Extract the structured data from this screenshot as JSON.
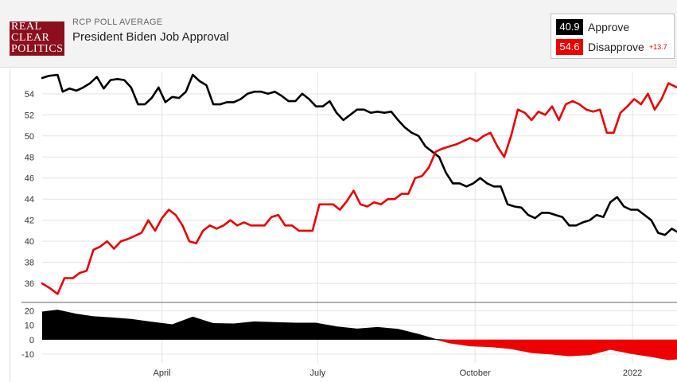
{
  "header": {
    "logo_lines": [
      "REAL",
      "CLEAR",
      "POLITICS"
    ],
    "subtitle": "RCP POLL AVERAGE",
    "title": "President Biden Job Approval"
  },
  "legend": {
    "approve_value": "40.9",
    "approve_label": "Approve",
    "disapprove_value": "54.6",
    "disapprove_label": "Disapprove",
    "spread": "+13.7"
  },
  "colors": {
    "approve": "#000000",
    "disapprove": "#ee0000",
    "grid": "#e3e3e3"
  },
  "chart_data": [
    {
      "type": "line",
      "title": "President Biden Job Approval",
      "x_axis": "date",
      "x_range": [
        "2021-01-21",
        "2022-01-27"
      ],
      "xticks": [
        {
          "date": "2021-04-01",
          "label": "April"
        },
        {
          "date": "2021-07-01",
          "label": "July"
        },
        {
          "date": "2021-10-01",
          "label": "October"
        },
        {
          "date": "2022-01-01",
          "label": "2022"
        }
      ],
      "ylim": [
        34.5,
        55.8
      ],
      "yticks": [
        36,
        38,
        40,
        42,
        44,
        46,
        48,
        50,
        52,
        54
      ],
      "grid": true,
      "series": [
        {
          "name": "Approve",
          "color": "#000000",
          "points": [
            [
              "2021-01-21",
              55.5
            ],
            [
              "2021-01-25",
              55.7
            ],
            [
              "2021-01-30",
              55.8
            ],
            [
              "2021-02-02",
              54.2
            ],
            [
              "2021-02-06",
              54.5
            ],
            [
              "2021-02-10",
              54.3
            ],
            [
              "2021-02-14",
              54.6
            ],
            [
              "2021-02-18",
              55.0
            ],
            [
              "2021-02-22",
              55.6
            ],
            [
              "2021-02-26",
              54.5
            ],
            [
              "2021-03-02",
              55.3
            ],
            [
              "2021-03-06",
              55.4
            ],
            [
              "2021-03-10",
              55.3
            ],
            [
              "2021-03-14",
              54.6
            ],
            [
              "2021-03-18",
              53.0
            ],
            [
              "2021-03-22",
              53.0
            ],
            [
              "2021-03-26",
              53.6
            ],
            [
              "2021-03-30",
              54.6
            ],
            [
              "2021-04-03",
              53.2
            ],
            [
              "2021-04-07",
              53.7
            ],
            [
              "2021-04-11",
              53.6
            ],
            [
              "2021-04-15",
              54.2
            ],
            [
              "2021-04-19",
              55.8
            ],
            [
              "2021-04-23",
              55.2
            ],
            [
              "2021-04-27",
              54.8
            ],
            [
              "2021-05-01",
              53.0
            ],
            [
              "2021-05-05",
              53.0
            ],
            [
              "2021-05-09",
              53.2
            ],
            [
              "2021-05-13",
              53.2
            ],
            [
              "2021-05-17",
              53.5
            ],
            [
              "2021-05-21",
              54.0
            ],
            [
              "2021-05-25",
              54.2
            ],
            [
              "2021-05-29",
              54.2
            ],
            [
              "2021-06-02",
              54.0
            ],
            [
              "2021-06-06",
              54.2
            ],
            [
              "2021-06-10",
              53.8
            ],
            [
              "2021-06-14",
              53.3
            ],
            [
              "2021-06-18",
              53.3
            ],
            [
              "2021-06-22",
              54.0
            ],
            [
              "2021-06-26",
              53.5
            ],
            [
              "2021-06-30",
              52.8
            ],
            [
              "2021-07-04",
              52.8
            ],
            [
              "2021-07-08",
              53.3
            ],
            [
              "2021-07-12",
              52.2
            ],
            [
              "2021-07-16",
              51.5
            ],
            [
              "2021-07-20",
              52.0
            ],
            [
              "2021-07-24",
              52.5
            ],
            [
              "2021-07-28",
              52.5
            ],
            [
              "2021-08-01",
              52.2
            ],
            [
              "2021-08-05",
              52.3
            ],
            [
              "2021-08-09",
              52.2
            ],
            [
              "2021-08-13",
              52.3
            ],
            [
              "2021-08-17",
              51.5
            ],
            [
              "2021-08-21",
              50.8
            ],
            [
              "2021-08-25",
              50.3
            ],
            [
              "2021-08-29",
              50.0
            ],
            [
              "2021-09-02",
              49.0
            ],
            [
              "2021-09-06",
              48.5
            ],
            [
              "2021-09-10",
              48.0
            ],
            [
              "2021-09-14",
              46.5
            ],
            [
              "2021-09-18",
              45.5
            ],
            [
              "2021-09-22",
              45.5
            ],
            [
              "2021-09-26",
              45.2
            ],
            [
              "2021-09-30",
              45.5
            ],
            [
              "2021-10-04",
              46.0
            ],
            [
              "2021-10-08",
              45.5
            ],
            [
              "2021-10-12",
              45.2
            ],
            [
              "2021-10-16",
              45.2
            ],
            [
              "2021-10-20",
              43.5
            ],
            [
              "2021-10-24",
              43.3
            ],
            [
              "2021-10-28",
              43.2
            ],
            [
              "2021-11-01",
              42.5
            ],
            [
              "2021-11-05",
              42.2
            ],
            [
              "2021-11-09",
              42.7
            ],
            [
              "2021-11-13",
              42.7
            ],
            [
              "2021-11-17",
              42.5
            ],
            [
              "2021-11-21",
              42.3
            ],
            [
              "2021-11-25",
              41.5
            ],
            [
              "2021-11-29",
              41.5
            ],
            [
              "2021-12-03",
              41.8
            ],
            [
              "2021-12-07",
              42.0
            ],
            [
              "2021-12-11",
              42.5
            ],
            [
              "2021-12-15",
              42.3
            ],
            [
              "2021-12-19",
              43.7
            ],
            [
              "2021-12-23",
              44.2
            ],
            [
              "2021-12-27",
              43.3
            ],
            [
              "2021-12-31",
              43.0
            ],
            [
              "2022-01-04",
              43.0
            ],
            [
              "2022-01-08",
              42.5
            ],
            [
              "2022-01-12",
              42.0
            ],
            [
              "2022-01-16",
              40.8
            ],
            [
              "2022-01-20",
              40.6
            ],
            [
              "2022-01-24",
              41.2
            ],
            [
              "2022-01-27",
              40.9
            ]
          ]
        },
        {
          "name": "Disapprove",
          "color": "#ee0000",
          "points": [
            [
              "2021-01-21",
              36.0
            ],
            [
              "2021-01-26",
              35.5
            ],
            [
              "2021-01-30",
              35.0
            ],
            [
              "2021-02-03",
              36.5
            ],
            [
              "2021-02-08",
              36.5
            ],
            [
              "2021-02-12",
              37.0
            ],
            [
              "2021-02-16",
              37.2
            ],
            [
              "2021-02-20",
              39.2
            ],
            [
              "2021-02-24",
              39.5
            ],
            [
              "2021-02-28",
              40.0
            ],
            [
              "2021-03-04",
              39.3
            ],
            [
              "2021-03-08",
              40.0
            ],
            [
              "2021-03-12",
              40.2
            ],
            [
              "2021-03-16",
              40.5
            ],
            [
              "2021-03-20",
              40.8
            ],
            [
              "2021-03-24",
              42.0
            ],
            [
              "2021-03-28",
              41.0
            ],
            [
              "2021-04-01",
              42.2
            ],
            [
              "2021-04-05",
              43.0
            ],
            [
              "2021-04-09",
              42.5
            ],
            [
              "2021-04-13",
              41.5
            ],
            [
              "2021-04-17",
              40.0
            ],
            [
              "2021-04-21",
              39.8
            ],
            [
              "2021-04-25",
              41.0
            ],
            [
              "2021-04-29",
              41.5
            ],
            [
              "2021-05-03",
              41.2
            ],
            [
              "2021-05-07",
              41.5
            ],
            [
              "2021-05-11",
              42.0
            ],
            [
              "2021-05-15",
              41.5
            ],
            [
              "2021-05-19",
              41.8
            ],
            [
              "2021-05-23",
              41.5
            ],
            [
              "2021-05-27",
              41.5
            ],
            [
              "2021-05-31",
              41.5
            ],
            [
              "2021-06-04",
              42.3
            ],
            [
              "2021-06-08",
              42.5
            ],
            [
              "2021-06-12",
              41.5
            ],
            [
              "2021-06-16",
              41.5
            ],
            [
              "2021-06-20",
              41.0
            ],
            [
              "2021-06-24",
              41.0
            ],
            [
              "2021-06-28",
              41.0
            ],
            [
              "2021-07-02",
              43.5
            ],
            [
              "2021-07-06",
              43.5
            ],
            [
              "2021-07-10",
              43.5
            ],
            [
              "2021-07-14",
              43.0
            ],
            [
              "2021-07-18",
              43.8
            ],
            [
              "2021-07-22",
              44.8
            ],
            [
              "2021-07-26",
              43.5
            ],
            [
              "2021-07-30",
              43.3
            ],
            [
              "2021-08-03",
              43.7
            ],
            [
              "2021-08-07",
              43.5
            ],
            [
              "2021-08-11",
              44.0
            ],
            [
              "2021-08-15",
              44.0
            ],
            [
              "2021-08-19",
              44.5
            ],
            [
              "2021-08-23",
              44.5
            ],
            [
              "2021-08-27",
              46.0
            ],
            [
              "2021-08-31",
              46.2
            ],
            [
              "2021-09-04",
              47.0
            ],
            [
              "2021-09-08",
              48.5
            ],
            [
              "2021-09-12",
              48.8
            ],
            [
              "2021-09-16",
              49.0
            ],
            [
              "2021-09-20",
              49.2
            ],
            [
              "2021-09-24",
              49.5
            ],
            [
              "2021-09-28",
              49.8
            ],
            [
              "2021-10-02",
              49.5
            ],
            [
              "2021-10-06",
              50.0
            ],
            [
              "2021-10-10",
              50.3
            ],
            [
              "2021-10-14",
              49.0
            ],
            [
              "2021-10-18",
              48.0
            ],
            [
              "2021-10-22",
              50.0
            ],
            [
              "2021-10-26",
              52.5
            ],
            [
              "2021-10-30",
              52.2
            ],
            [
              "2021-11-03",
              51.5
            ],
            [
              "2021-11-07",
              52.3
            ],
            [
              "2021-11-11",
              52.0
            ],
            [
              "2021-11-15",
              52.8
            ],
            [
              "2021-11-19",
              51.5
            ],
            [
              "2021-11-23",
              53.0
            ],
            [
              "2021-11-27",
              53.3
            ],
            [
              "2021-12-01",
              53.0
            ],
            [
              "2021-12-05",
              52.5
            ],
            [
              "2021-12-09",
              52.3
            ],
            [
              "2021-12-13",
              52.5
            ],
            [
              "2021-12-17",
              50.3
            ],
            [
              "2021-12-21",
              50.3
            ],
            [
              "2021-12-25",
              52.2
            ],
            [
              "2021-12-29",
              52.8
            ],
            [
              "2022-01-02",
              53.5
            ],
            [
              "2022-01-06",
              53.0
            ],
            [
              "2022-01-10",
              54.0
            ],
            [
              "2022-01-14",
              52.5
            ],
            [
              "2022-01-18",
              53.5
            ],
            [
              "2022-01-22",
              55.0
            ],
            [
              "2022-01-27",
              54.6
            ]
          ]
        }
      ]
    },
    {
      "type": "area",
      "x_axis": "date",
      "x_range": [
        "2021-01-21",
        "2022-01-27"
      ],
      "ylim": [
        -15,
        22
      ],
      "yticks": [
        20,
        10,
        0,
        -10
      ],
      "series": [
        {
          "name": "Spread",
          "color_positive": "#000000",
          "color_negative": "#ee0000",
          "points": [
            [
              "2021-01-21",
              19.5
            ],
            [
              "2021-01-30",
              20.8
            ],
            [
              "2021-02-10",
              18.0
            ],
            [
              "2021-02-20",
              16.3
            ],
            [
              "2021-03-02",
              15.5
            ],
            [
              "2021-03-14",
              14.4
            ],
            [
              "2021-03-26",
              12.5
            ],
            [
              "2021-04-07",
              10.7
            ],
            [
              "2021-04-19",
              16.0
            ],
            [
              "2021-05-01",
              11.5
            ],
            [
              "2021-05-13",
              11.2
            ],
            [
              "2021-05-25",
              12.7
            ],
            [
              "2021-06-06",
              12.2
            ],
            [
              "2021-06-18",
              11.8
            ],
            [
              "2021-06-30",
              11.8
            ],
            [
              "2021-07-12",
              9.2
            ],
            [
              "2021-07-24",
              7.7
            ],
            [
              "2021-08-05",
              8.8
            ],
            [
              "2021-08-17",
              7.5
            ],
            [
              "2021-08-29",
              4.0
            ],
            [
              "2021-09-08",
              0.5
            ],
            [
              "2021-09-16",
              -2.5
            ],
            [
              "2021-09-28",
              -4.6
            ],
            [
              "2021-10-10",
              -5.1
            ],
            [
              "2021-10-22",
              -6.5
            ],
            [
              "2021-11-03",
              -9.3
            ],
            [
              "2021-11-15",
              -10.3
            ],
            [
              "2021-11-25",
              -11.5
            ],
            [
              "2021-12-07",
              -10.7
            ],
            [
              "2021-12-19",
              -7.0
            ],
            [
              "2021-12-31",
              -9.8
            ],
            [
              "2022-01-12",
              -12.0
            ],
            [
              "2022-01-22",
              -14.2
            ],
            [
              "2022-01-27",
              -13.7
            ]
          ]
        }
      ]
    }
  ]
}
